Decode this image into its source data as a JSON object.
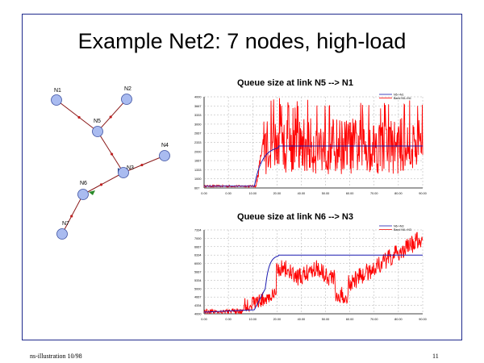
{
  "slide": {
    "title": "Example Net2: 7 nodes, high-load",
    "footer_left": "ns-illustration 10/98",
    "page_number": "11"
  },
  "network": {
    "nodes": [
      {
        "id": "N1",
        "label": "N1"
      },
      {
        "id": "N2",
        "label": "N2"
      },
      {
        "id": "N5",
        "label": "N5"
      },
      {
        "id": "N4",
        "label": "N4"
      },
      {
        "id": "N3",
        "label": "N3"
      },
      {
        "id": "N6",
        "label": "N6"
      },
      {
        "id": "N7",
        "label": "N7"
      }
    ],
    "links": [
      {
        "from": "N1",
        "to": "N5"
      },
      {
        "from": "N2",
        "to": "N5"
      },
      {
        "from": "N5",
        "to": "N3"
      },
      {
        "from": "N4",
        "to": "N3"
      },
      {
        "from": "N3",
        "to": "N6"
      },
      {
        "from": "N6",
        "to": "N7"
      }
    ],
    "node_color": "#a9bbf0",
    "link_color": "#8b1a1a"
  },
  "chart_data": [
    {
      "type": "line",
      "title": "Queue size at link N5 --> N1",
      "series": [
        {
          "name": "N5->N1",
          "color": "#1a1ab0"
        },
        {
          "name": "Band N5->N1",
          "color": "#ff0000"
        }
      ],
      "x_ticks": [
        "0.00",
        "0.00",
        "10.00",
        "20.00",
        "40.00",
        "50.00",
        "60.00",
        "70.00",
        "80.00",
        "90.00"
      ],
      "y_ticks": [
        "4000",
        "3667",
        "3333",
        "3000",
        "2667",
        "2333",
        "2000",
        "1667",
        "1333",
        "1000",
        "667"
      ]
    },
    {
      "type": "line",
      "title": "Queue size at link N6 --> N3",
      "series": [
        {
          "name": "N6->N3",
          "color": "#1a1ab0"
        },
        {
          "name": "Band N6->N3",
          "color": "#ff0000"
        }
      ],
      "x_ticks": [
        "0.00",
        "0.00",
        "10.00",
        "20.00",
        "40.00",
        "50.00",
        "60.00",
        "70.00",
        "80.00",
        "90.00"
      ],
      "y_ticks": [
        "7334",
        "7000",
        "6667",
        "6334",
        "6000",
        "5667",
        "5334",
        "5000",
        "4667",
        "4334",
        "4000"
      ]
    }
  ]
}
